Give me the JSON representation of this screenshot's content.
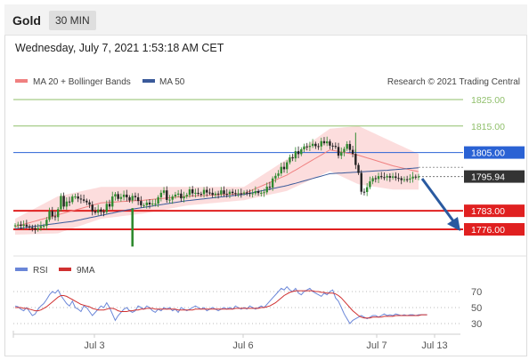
{
  "header": {
    "title": "Gold",
    "timeframe": "30 MIN"
  },
  "datetime": "Wednesday, July 7, 2021 1:53:18 AM CET",
  "legend": {
    "bollinger": "MA 20 + Bollinger Bands",
    "ma50": "MA 50",
    "copyright": "Research © 2021 Trading Central"
  },
  "rsi_legend": {
    "rsi": "RSI",
    "ma9": "9MA"
  },
  "colors": {
    "resistance": "#8fbf6a",
    "pivot": "#2a62d4",
    "support": "#e02020",
    "last": "#333333",
    "rsi": "#6a86d8",
    "rsi_ma": "#d03030",
    "bollinger": "#f08080",
    "ma50": "#3a5a9a",
    "arrow": "#2a5aa0"
  },
  "chart_data": [
    {
      "type": "candlestick",
      "x_labels": [
        "Jul 3",
        "Jul 6",
        "Jul 7",
        "Jul 13"
      ],
      "ylim": [
        1770,
        1830
      ],
      "levels": [
        {
          "label": "1825.00",
          "value": 1825.0,
          "kind": "resistance"
        },
        {
          "label": "1815.00",
          "value": 1815.0,
          "kind": "resistance"
        },
        {
          "label": "1805.00",
          "value": 1805.0,
          "kind": "pivot"
        },
        {
          "label": "1795.94",
          "value": 1795.94,
          "kind": "last"
        },
        {
          "label": "1783.00",
          "value": 1783.0,
          "kind": "support"
        },
        {
          "label": "1776.00",
          "value": 1776.0,
          "kind": "support"
        }
      ],
      "close": [
        1777.5,
        1777.8,
        1777.3,
        1777.8,
        1777.1,
        1776.7,
        1776.5,
        1775.9,
        1776.5,
        1777.2,
        1777.3,
        1779.6,
        1782.9,
        1780.9,
        1780.6,
        1783.6,
        1788.6,
        1784.6,
        1786.5,
        1786.3,
        1788.4,
        1788.4,
        1787.6,
        1787.3,
        1786.8,
        1786.2,
        1785.3,
        1782.8,
        1782.3,
        1783.5,
        1782.6,
        1782.5,
        1785.6,
        1784.6,
        1788.4,
        1789.3,
        1787.5,
        1788.2,
        1789.1,
        1788.1,
        1786.9,
        1788.6,
        1788.1,
        1786.7,
        1785.1,
        1785.1,
        1786.1,
        1785.4,
        1785.7,
        1785.7,
        1788.1,
        1789.8,
        1790.7,
        1787.1,
        1787.2,
        1788.4,
        1789.1,
        1789.5,
        1787.7,
        1788.4,
        1789.0,
        1791.1,
        1789.6,
        1789.8,
        1789.4,
        1789.3,
        1790.9,
        1789.9,
        1789.8,
        1789.0,
        1789.5,
        1789.2,
        1790.7,
        1789.4,
        1789.3,
        1790.2,
        1789.7,
        1789.5,
        1789.6,
        1789.5,
        1789.9,
        1789.7,
        1789.6,
        1789.6,
        1790.4,
        1789.7,
        1789.8,
        1790.0,
        1792.1,
        1791.8,
        1795.2,
        1796.2,
        1797.1,
        1799.6,
        1798.7,
        1801.3,
        1803.2,
        1802.8,
        1805.5,
        1804.4,
        1806.2,
        1807.3,
        1807.1,
        1807.5,
        1808.3,
        1807.4,
        1807.3,
        1809.3,
        1808.5,
        1809.2,
        1807.6,
        1807.5,
        1807.1,
        1803.8,
        1805.1,
        1806.4,
        1808.2,
        1806.0,
        1804.5,
        1800.3,
        1797.3,
        1790.2,
        1790.1,
        1791.9,
        1794.1,
        1795.3,
        1795.0,
        1796.1,
        1795.7,
        1795.6,
        1796.1,
        1795.5,
        1796.0,
        1795.4,
        1795.3,
        1794.6,
        1794.9,
        1794.8,
        1795.2,
        1795.9,
        1795.6,
        1795.94
      ],
      "ma50_points": [
        {
          "i": 0,
          "v": 1776.2
        },
        {
          "i": 20,
          "v": 1779.0
        },
        {
          "i": 40,
          "v": 1783.5
        },
        {
          "i": 60,
          "v": 1786.8
        },
        {
          "i": 80,
          "v": 1789.2
        },
        {
          "i": 95,
          "v": 1792.5
        },
        {
          "i": 110,
          "v": 1797.0
        },
        {
          "i": 130,
          "v": 1798.3
        },
        {
          "i": 144,
          "v": 1799.5
        }
      ],
      "bollinger_ma": [
        {
          "i": 0,
          "v": 1777.0
        },
        {
          "i": 15,
          "v": 1781.5
        },
        {
          "i": 30,
          "v": 1786.0
        },
        {
          "i": 45,
          "v": 1787.0
        },
        {
          "i": 60,
          "v": 1788.5
        },
        {
          "i": 80,
          "v": 1789.5
        },
        {
          "i": 95,
          "v": 1796.5
        },
        {
          "i": 110,
          "v": 1806.0
        },
        {
          "i": 120,
          "v": 1804.0
        },
        {
          "i": 132,
          "v": 1800.0
        },
        {
          "i": 144,
          "v": 1797.0
        }
      ],
      "bollinger_width": [
        {
          "i": 0,
          "v": 3
        },
        {
          "i": 15,
          "v": 7
        },
        {
          "i": 30,
          "v": 6
        },
        {
          "i": 45,
          "v": 5
        },
        {
          "i": 60,
          "v": 3.5
        },
        {
          "i": 80,
          "v": 2.5
        },
        {
          "i": 95,
          "v": 6
        },
        {
          "i": 110,
          "v": 8
        },
        {
          "i": 120,
          "v": 11
        },
        {
          "i": 132,
          "v": 9
        },
        {
          "i": 144,
          "v": 6
        }
      ]
    },
    {
      "type": "line",
      "title": "RSI",
      "y_ticks": [
        70,
        50,
        30
      ],
      "ylim": [
        15,
        85
      ],
      "series": [
        {
          "name": "RSI",
          "values": [
            52,
            51,
            48,
            46,
            50,
            45,
            40,
            42,
            48,
            52,
            55,
            60,
            66,
            70,
            68,
            72,
            65,
            60,
            55,
            52,
            58,
            50,
            48,
            45,
            52,
            50,
            45,
            40,
            44,
            48,
            52,
            50,
            56,
            50,
            42,
            34,
            40,
            44,
            48,
            50,
            46,
            44,
            46,
            52,
            50,
            48,
            52,
            50,
            46,
            44,
            48,
            46,
            50,
            48,
            50,
            46,
            48,
            44,
            50,
            48,
            46,
            48,
            50,
            52,
            50,
            48,
            50,
            46,
            48,
            50,
            48,
            46,
            48,
            50,
            48,
            50,
            48,
            52,
            50,
            48,
            50,
            48,
            52,
            50,
            48,
            50,
            52,
            50,
            54,
            58,
            62,
            66,
            70,
            74,
            72,
            76,
            72,
            70,
            74,
            68,
            66,
            70,
            72,
            74,
            70,
            68,
            66,
            64,
            68,
            66,
            70,
            72,
            62,
            58,
            50,
            42,
            36,
            30,
            34,
            36,
            38,
            40,
            38,
            36,
            38,
            40,
            40,
            38,
            40,
            42,
            40,
            41,
            40,
            42,
            41,
            40,
            41,
            40,
            41,
            41,
            40,
            41,
            41,
            41,
            41
          ]
        },
        {
          "name": "9MA",
          "values": [
            50,
            50,
            50,
            49,
            49,
            48,
            47,
            46,
            46,
            47,
            49,
            51,
            54,
            57,
            60,
            63,
            65,
            65,
            64,
            62,
            60,
            58,
            56,
            54,
            53,
            52,
            51,
            49,
            48,
            47,
            47,
            47,
            48,
            49,
            49,
            48,
            46,
            45,
            45,
            45,
            46,
            46,
            47,
            47,
            48,
            48,
            49,
            49,
            49,
            48,
            48,
            48,
            48,
            48,
            48,
            48,
            48,
            47,
            47,
            47,
            47,
            47,
            47,
            48,
            48,
            48,
            48,
            48,
            48,
            48,
            48,
            48,
            48,
            48,
            48,
            48,
            48,
            49,
            49,
            49,
            49,
            49,
            49,
            49,
            49,
            49,
            50,
            50,
            51,
            52,
            54,
            56,
            59,
            62,
            65,
            67,
            69,
            70,
            71,
            71,
            71,
            71,
            71,
            71,
            71,
            70,
            70,
            69,
            69,
            68,
            68,
            68,
            67,
            65,
            62,
            58,
            54,
            50,
            46,
            43,
            40,
            38,
            37,
            37,
            37,
            38,
            38,
            38,
            38,
            39,
            39,
            39,
            39,
            40,
            40,
            40,
            40,
            40,
            40,
            40,
            40,
            40,
            41,
            41,
            41
          ]
        }
      ]
    }
  ]
}
